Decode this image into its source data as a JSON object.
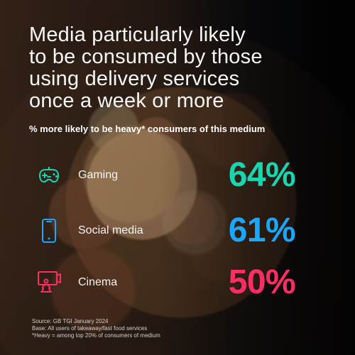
{
  "header": {
    "title_lines": [
      "Media particularly likely",
      "to be consumed by those",
      "using delivery services",
      "once a week or more"
    ],
    "subtitle": "% more likely to be heavy* consumers of this medium"
  },
  "metrics": [
    {
      "label": "Gaming",
      "value": "64%",
      "icon": "game-controller-icon",
      "color": "#18d6b0"
    },
    {
      "label": "Social media",
      "value": "61%",
      "icon": "smartphone-icon",
      "color": "#1aa7ff"
    },
    {
      "label": "Cinema",
      "value": "50%",
      "icon": "cinema-viewer-icon",
      "color": "#ff2d66"
    }
  ],
  "notes": [
    "Source: GB TGI January 2024",
    "Base: All users of takeaway/fast food services",
    "*Heavy = among top 20% of consumers of medium"
  ]
}
